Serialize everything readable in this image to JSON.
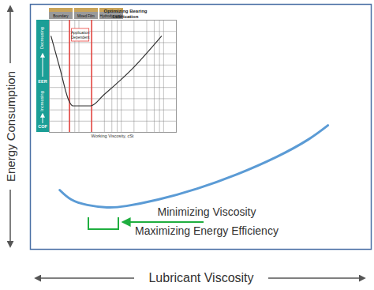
{
  "chart_data": [
    {
      "type": "line",
      "x_label": "Lubricant Viscosity",
      "y_label": "Energy Consumption",
      "x": [
        8.6,
        12,
        16.7,
        22.5,
        28.2,
        37.5,
        49,
        60.6,
        72.2,
        81.5,
        87.3
      ],
      "values": [
        24.2,
        20.3,
        18.1,
        17.1,
        17.7,
        20.3,
        24.8,
        30.6,
        37.7,
        44.8,
        50.6
      ],
      "color": "#5b9bd5",
      "xlim": [
        0,
        100
      ],
      "ylim": [
        0,
        100
      ],
      "tick_labels": false,
      "annotation": {
        "text": [
          "Minimizing Viscosity",
          "Maximizing Energy Efficiency"
        ],
        "color": "#1fae3f"
      }
    },
    {
      "type": "line",
      "title": "Optimizing Bearing Lubrication",
      "regimes": [
        "Boundary",
        "Mixed Film",
        "Hydrodynamic"
      ],
      "x_label": "Working Viscosity, cSt",
      "y_labels": [
        "Decreasing",
        "EER",
        "Increasing",
        "COF"
      ],
      "annotation": "Application Dependent",
      "boundaries": {
        "x": [
          3,
          10
        ],
        "color": "#e8413c"
      },
      "x": [
        1.1,
        1.78,
        2.87,
        3.6,
        9.5,
        19.6,
        82.5,
        444
      ],
      "values": [
        85.7,
        57,
        28.6,
        23.6,
        23.6,
        33.6,
        55,
        85.7
      ],
      "color": "#333333",
      "panel_color": "#1a9e96",
      "log": "x",
      "xlim": [
        1,
        1000
      ],
      "ylim": [
        0,
        100
      ],
      "xticks": [
        1,
        2,
        3,
        4,
        5,
        10,
        20,
        30,
        40,
        50,
        100,
        200,
        300,
        400,
        500,
        1000
      ],
      "yticks": [
        0,
        10,
        20,
        30,
        40,
        50,
        60,
        70,
        80,
        90,
        100
      ],
      "grid": true,
      "tick_labels": false
    }
  ]
}
